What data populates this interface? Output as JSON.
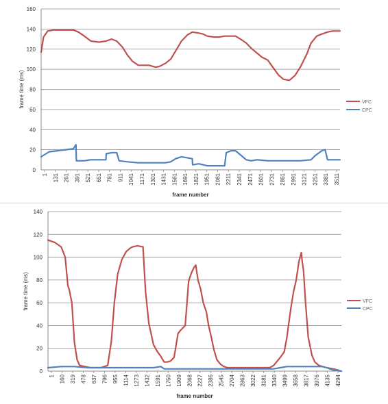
{
  "chart_data": [
    {
      "type": "line",
      "title": "",
      "xlabel": "frame number",
      "ylabel": "frame time (ms)",
      "ylim": [
        0,
        160
      ],
      "yticks": [
        "0",
        "20",
        "40",
        "60",
        "80",
        "100",
        "120",
        "140",
        "160"
      ],
      "xticks": [
        "1",
        "131",
        "261",
        "391",
        "521",
        "651",
        "781",
        "911",
        "1041",
        "1171",
        "1301",
        "1431",
        "1561",
        "1691",
        "1821",
        "1951",
        "2081",
        "2211",
        "2341",
        "2471",
        "2601",
        "2731",
        "2861",
        "2991",
        "3121",
        "3251",
        "3381",
        "3511"
      ],
      "xrange": [
        1,
        3600
      ],
      "grid": true,
      "legend_position": "right",
      "series": [
        {
          "name": "VFC",
          "color": "#c0504d",
          "x": [
            1,
            30,
            80,
            150,
            261,
            391,
            450,
            521,
            600,
            700,
            781,
            850,
            911,
            980,
            1041,
            1100,
            1171,
            1230,
            1301,
            1380,
            1431,
            1500,
            1561,
            1620,
            1691,
            1760,
            1821,
            1900,
            1951,
            2000,
            2081,
            2150,
            2211,
            2280,
            2341,
            2420,
            2471,
            2530,
            2601,
            2660,
            2731,
            2800,
            2861,
            2920,
            2991,
            3060,
            3121,
            3200,
            3251,
            3320,
            3381,
            3450,
            3511,
            3600
          ],
          "values": [
            117,
            132,
            138,
            139,
            139,
            139,
            137,
            133,
            128,
            127,
            128,
            130,
            128,
            122,
            114,
            108,
            104,
            104,
            104,
            102,
            103,
            106,
            110,
            118,
            128,
            134,
            137,
            136,
            135,
            133,
            132,
            132,
            133,
            133,
            133,
            129,
            126,
            121,
            116,
            112,
            109,
            101,
            94,
            90,
            89,
            94,
            102,
            115,
            126,
            133,
            135,
            137,
            138,
            138
          ]
        },
        {
          "name": "CPC",
          "color": "#4f81bd",
          "x": [
            1,
            40,
            100,
            200,
            300,
            390,
            420,
            425,
            521,
            600,
            700,
            781,
            785,
            850,
            911,
            940,
            1041,
            1171,
            1301,
            1431,
            1500,
            1561,
            1620,
            1691,
            1760,
            1821,
            1825,
            1900,
            1951,
            2000,
            2081,
            2150,
            2211,
            2230,
            2290,
            2341,
            2400,
            2471,
            2530,
            2601,
            2731,
            2861,
            2991,
            3121,
            3251,
            3300,
            3381,
            3420,
            3450,
            3511,
            3600
          ],
          "values": [
            13,
            15,
            18,
            19,
            20,
            21,
            25,
            9,
            9,
            10,
            10,
            10,
            16,
            17,
            17,
            9,
            8,
            7,
            7,
            7,
            7,
            8,
            11,
            13,
            12,
            11,
            5,
            6,
            5,
            4,
            4,
            4,
            4,
            17,
            19,
            19,
            15,
            10,
            9,
            10,
            9,
            9,
            9,
            9,
            10,
            14,
            19,
            20,
            10,
            10,
            10
          ]
        }
      ]
    },
    {
      "type": "line",
      "title": "",
      "xlabel": "frame number",
      "ylabel": "frame time (ms)",
      "ylim": [
        0,
        140
      ],
      "yticks": [
        "0",
        "20",
        "40",
        "60",
        "80",
        "100",
        "120",
        "140"
      ],
      "xticks": [
        "1",
        "160",
        "319",
        "478",
        "637",
        "796",
        "955",
        "1114",
        "1273",
        "1432",
        "1591",
        "1750",
        "1909",
        "2068",
        "2227",
        "2386",
        "2545",
        "2704",
        "2863",
        "3022",
        "3181",
        "3340",
        "3499",
        "3658",
        "3817",
        "3976",
        "4135",
        "4294"
      ],
      "xrange": [
        1,
        4420
      ],
      "grid": true,
      "legend_position": "right",
      "series": [
        {
          "name": "VFC",
          "color": "#c0504d",
          "x": [
            1,
            100,
            200,
            260,
            300,
            319,
            360,
            400,
            440,
            478,
            560,
            637,
            720,
            796,
            850,
            900,
            955,
            1000,
            1050,
            1114,
            1180,
            1240,
            1273,
            1350,
            1432,
            1470,
            1520,
            1591,
            1650,
            1700,
            1750,
            1800,
            1850,
            1900,
            1960,
            2000,
            2068,
            2120,
            2160,
            2200,
            2227,
            2260,
            2300,
            2340,
            2386,
            2420,
            2460,
            2500,
            2545,
            2600,
            2650,
            2704,
            2780,
            2863,
            2950,
            3022,
            3100,
            3181,
            3260,
            3340,
            3400,
            3499,
            3560,
            3600,
            3658,
            3700,
            3740,
            3780,
            3817,
            3830,
            3850,
            3880,
            3920,
            3976,
            4020,
            4080,
            4135,
            4200,
            4294,
            4360,
            4420
          ],
          "values": [
            115,
            113,
            109,
            100,
            75,
            72,
            60,
            25,
            10,
            5,
            4,
            3,
            3,
            3,
            4,
            5,
            26,
            60,
            85,
            98,
            105,
            108,
            109,
            110,
            109,
            70,
            42,
            23,
            17,
            13,
            8,
            8,
            9,
            12,
            33,
            36,
            40,
            79,
            86,
            91,
            93,
            80,
            72,
            60,
            52,
            40,
            30,
            19,
            10,
            6,
            4,
            3,
            3,
            3,
            3,
            3,
            3,
            3,
            3,
            3,
            5,
            12,
            17,
            30,
            55,
            70,
            80,
            96,
            104,
            96,
            88,
            60,
            30,
            14,
            8,
            5,
            4,
            3,
            2,
            1,
            0
          ]
        },
        {
          "name": "CPC",
          "color": "#4f81bd",
          "x": [
            1,
            200,
            400,
            600,
            800,
            1000,
            1200,
            1400,
            1591,
            1700,
            1750,
            1800,
            2000,
            2200,
            2400,
            2600,
            2800,
            3000,
            3200,
            3400,
            3499,
            3600,
            3800,
            4000,
            4135,
            4200,
            4294,
            4420
          ],
          "values": [
            3,
            4,
            4,
            3,
            3,
            3,
            3,
            3,
            3,
            4,
            2,
            2,
            2,
            2,
            2,
            2,
            2,
            2,
            2,
            2,
            3,
            4,
            4,
            4,
            4,
            3,
            1,
            0
          ]
        }
      ]
    }
  ]
}
